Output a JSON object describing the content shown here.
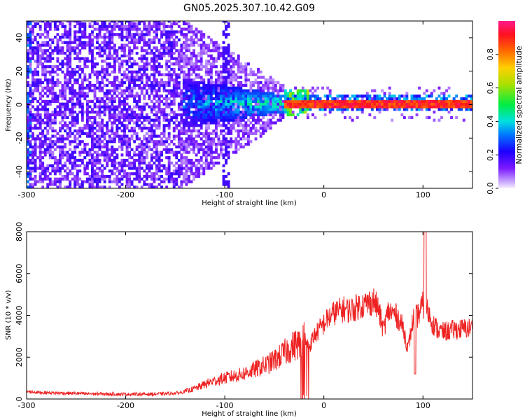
{
  "title": "GN05.2025.307.10.42.G09",
  "chart_data": [
    {
      "type": "heatmap",
      "xlabel": "Height of straight line (km)",
      "ylabel": "Frequency (Hz)",
      "xlim": [
        -300,
        150
      ],
      "ylim": [
        -50,
        50
      ],
      "xticks": [
        "-300",
        "-200",
        "-100",
        "0",
        "100"
      ],
      "yticks": [
        "-40",
        "-20",
        "0",
        "20",
        "40"
      ],
      "colorbar": {
        "label": "Normalized spectral amplitude",
        "range": [
          0.0,
          1.0
        ],
        "ticks": [
          "0.0",
          "0.2",
          "0.4",
          "0.6",
          "0.8"
        ]
      },
      "description_regions": [
        {
          "x": [
            -300,
            -143
          ],
          "freq_spread": [
            -50,
            50
          ],
          "amplitude": 0.15
        },
        {
          "x": [
            -143,
            -40
          ],
          "freq_spread": [
            -20,
            15
          ],
          "amplitude": 0.35
        },
        {
          "x": [
            -40,
            150
          ],
          "freq_spread": [
            -1.5,
            1.5
          ],
          "amplitude": 0.95
        }
      ]
    },
    {
      "type": "line",
      "xlabel": "Height of straight line (km)",
      "ylabel": "SNR (10 * v/v)",
      "xlim": [
        -300,
        150
      ],
      "ylim": [
        0,
        8000
      ],
      "xticks": [
        "-300",
        "-200",
        "-100",
        "0",
        "100"
      ],
      "yticks": [
        "0",
        "2000",
        "4000",
        "6000",
        "8000"
      ],
      "series": [
        {
          "color": "#ee2222",
          "x": [
            -300,
            -280,
            -260,
            -240,
            -220,
            -200,
            -180,
            -160,
            -145,
            -130,
            -115,
            -100,
            -85,
            -70,
            -55,
            -45,
            -35,
            -25,
            -20,
            -15,
            -10,
            -5,
            0,
            5,
            10,
            15,
            20,
            25,
            30,
            35,
            40,
            45,
            50,
            55,
            60,
            65,
            70,
            75,
            80,
            85,
            90,
            95,
            100,
            105,
            110,
            115,
            120,
            130,
            140,
            150
          ],
          "y": [
            350,
            300,
            280,
            250,
            240,
            230,
            230,
            250,
            300,
            500,
            800,
            1000,
            1150,
            1400,
            1700,
            2000,
            2400,
            2700,
            2900,
            2500,
            3000,
            3300,
            3600,
            3900,
            4100,
            4200,
            4300,
            4250,
            4300,
            4450,
            4500,
            4600,
            4700,
            4300,
            3300,
            4200,
            4100,
            3900,
            3400,
            2400,
            3800,
            4000,
            4500,
            4200,
            3600,
            3300,
            3200,
            3300,
            3350,
            3400
          ]
        }
      ]
    }
  ]
}
